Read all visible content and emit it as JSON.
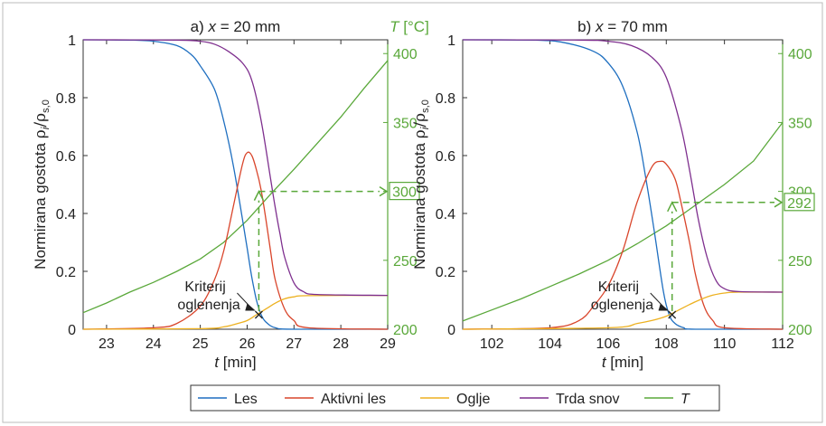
{
  "chart_data": {
    "type": "line",
    "legend": {
      "placement": "bottom",
      "entries": [
        {
          "label": "Les",
          "color": "#1f6fc0"
        },
        {
          "label": "Aktivni les",
          "color": "#d9452b"
        },
        {
          "label": "Oglje",
          "color": "#edb120"
        },
        {
          "label": "Trda snov",
          "color": "#7e2f8e"
        },
        {
          "label": "T",
          "color": "#5aa83a"
        }
      ]
    },
    "colors": {
      "les": "#1f6fc0",
      "aktivni": "#d9452b",
      "oglje": "#edb120",
      "trda": "#7e2f8e",
      "T": "#5aa83a"
    },
    "panels": [
      {
        "title_prefix": "a) ",
        "title_var": "x",
        "title_suffix": " = 20 mm",
        "xlabel_var": "t",
        "xlabel_unit": " [min]",
        "ylabel_left_text": "Normirana gostota ",
        "ylabel_left_math": "ρi/ρs,0",
        "ylabel_right_var": "T",
        "ylabel_right_unit": " [°C]",
        "show_right_label": true,
        "xlim": [
          22.5,
          29
        ],
        "ylim_left": [
          0,
          1
        ],
        "ylim_right": [
          200,
          410
        ],
        "xticks": [
          23,
          24,
          25,
          26,
          27,
          28,
          29
        ],
        "yticks_left": [
          0,
          0.2,
          0.4,
          0.6,
          0.8,
          1
        ],
        "yticks_right": [
          200,
          250,
          300,
          350,
          400
        ],
        "grid": false,
        "series": {
          "les": [
            [
              22.5,
              1
            ],
            [
              23.5,
              0.999
            ],
            [
              24.0,
              0.995
            ],
            [
              24.5,
              0.98
            ],
            [
              24.8,
              0.95
            ],
            [
              25.0,
              0.91
            ],
            [
              25.3,
              0.83
            ],
            [
              25.5,
              0.72
            ],
            [
              25.7,
              0.57
            ],
            [
              25.9,
              0.38
            ],
            [
              26.0,
              0.28
            ],
            [
              26.1,
              0.18
            ],
            [
              26.2,
              0.1
            ],
            [
              26.3,
              0.05
            ],
            [
              26.4,
              0.025
            ],
            [
              26.6,
              0.005
            ],
            [
              27.0,
              0
            ],
            [
              29,
              0
            ]
          ],
          "aktivni": [
            [
              22.5,
              0
            ],
            [
              24.0,
              0.005
            ],
            [
              24.5,
              0.02
            ],
            [
              25.0,
              0.08
            ],
            [
              25.3,
              0.17
            ],
            [
              25.5,
              0.27
            ],
            [
              25.7,
              0.42
            ],
            [
              25.9,
              0.57
            ],
            [
              26.0,
              0.61
            ],
            [
              26.1,
              0.6
            ],
            [
              26.2,
              0.55
            ],
            [
              26.3,
              0.48
            ],
            [
              26.4,
              0.38
            ],
            [
              26.5,
              0.27
            ],
            [
              26.6,
              0.17
            ],
            [
              26.8,
              0.07
            ],
            [
              27.0,
              0.03
            ],
            [
              27.3,
              0.005
            ],
            [
              29,
              0
            ]
          ],
          "oglje": [
            [
              22.5,
              0
            ],
            [
              25.0,
              0.002
            ],
            [
              25.5,
              0.008
            ],
            [
              25.8,
              0.02
            ],
            [
              26.0,
              0.03
            ],
            [
              26.2,
              0.05
            ],
            [
              26.4,
              0.07
            ],
            [
              26.6,
              0.09
            ],
            [
              26.8,
              0.105
            ],
            [
              27.0,
              0.112
            ],
            [
              27.3,
              0.116
            ],
            [
              29,
              0.117
            ]
          ],
          "trda": [
            [
              22.5,
              1
            ],
            [
              24.5,
              0.999
            ],
            [
              25.0,
              0.995
            ],
            [
              25.3,
              0.985
            ],
            [
              25.6,
              0.96
            ],
            [
              25.9,
              0.92
            ],
            [
              26.1,
              0.86
            ],
            [
              26.3,
              0.72
            ],
            [
              26.5,
              0.52
            ],
            [
              26.6,
              0.42
            ],
            [
              26.7,
              0.33
            ],
            [
              26.8,
              0.25
            ],
            [
              27.0,
              0.16
            ],
            [
              27.2,
              0.13
            ],
            [
              27.5,
              0.12
            ],
            [
              29,
              0.117
            ]
          ],
          "T": [
            [
              22.5,
              212
            ],
            [
              23,
              219
            ],
            [
              23.5,
              227
            ],
            [
              24,
              234
            ],
            [
              24.5,
              242
            ],
            [
              25,
              251
            ],
            [
              25.5,
              263
            ],
            [
              26,
              279
            ],
            [
              26.5,
              298
            ],
            [
              27,
              316
            ],
            [
              27.5,
              335
            ],
            [
              28,
              354
            ],
            [
              28.5,
              375
            ],
            [
              29,
              395
            ]
          ]
        },
        "marker": {
          "t": 26.25,
          "y": 0.05
        },
        "criterion_line1": "Kriterij",
        "criterion_line2": "oglenenja",
        "readout_T": 300,
        "readout_label": "300"
      },
      {
        "title_prefix": "b) ",
        "title_var": "x",
        "title_suffix": " = 70 mm",
        "xlabel_var": "t",
        "xlabel_unit": " [min]",
        "ylabel_left_text": "Normirana gostota ",
        "ylabel_left_math": "ρi/ρs,0",
        "show_right_label": false,
        "xlim": [
          101,
          112
        ],
        "ylim_left": [
          0,
          1
        ],
        "ylim_right": [
          200,
          410
        ],
        "xticks": [
          102,
          104,
          106,
          108,
          110,
          112
        ],
        "yticks_left": [
          0,
          0.2,
          0.4,
          0.6,
          0.8,
          1
        ],
        "yticks_right": [
          200,
          250,
          300,
          350,
          400
        ],
        "grid": false,
        "series": {
          "les": [
            [
              101,
              1
            ],
            [
              103.5,
              0.999
            ],
            [
              104.5,
              0.99
            ],
            [
              105.5,
              0.96
            ],
            [
              106.0,
              0.92
            ],
            [
              106.5,
              0.84
            ],
            [
              107.0,
              0.68
            ],
            [
              107.3,
              0.52
            ],
            [
              107.6,
              0.33
            ],
            [
              107.9,
              0.13
            ],
            [
              108.1,
              0.05
            ],
            [
              108.3,
              0.02
            ],
            [
              108.6,
              0.005
            ],
            [
              109,
              0
            ],
            [
              112,
              0
            ]
          ],
          "aktivni": [
            [
              101,
              0
            ],
            [
              104.0,
              0.005
            ],
            [
              105.0,
              0.03
            ],
            [
              105.5,
              0.08
            ],
            [
              106.0,
              0.15
            ],
            [
              106.5,
              0.27
            ],
            [
              107.0,
              0.44
            ],
            [
              107.5,
              0.56
            ],
            [
              107.8,
              0.58
            ],
            [
              108.0,
              0.57
            ],
            [
              108.3,
              0.52
            ],
            [
              108.5,
              0.44
            ],
            [
              108.8,
              0.3
            ],
            [
              109.0,
              0.19
            ],
            [
              109.3,
              0.08
            ],
            [
              109.6,
              0.03
            ],
            [
              110,
              0.005
            ],
            [
              112,
              0
            ]
          ],
          "oglje": [
            [
              101,
              0
            ],
            [
              106,
              0.005
            ],
            [
              107,
              0.02
            ],
            [
              107.5,
              0.03
            ],
            [
              108,
              0.045
            ],
            [
              108.5,
              0.07
            ],
            [
              109,
              0.095
            ],
            [
              109.5,
              0.115
            ],
            [
              110,
              0.125
            ],
            [
              110.5,
              0.128
            ],
            [
              112,
              0.128
            ]
          ],
          "trda": [
            [
              101,
              1
            ],
            [
              105,
              0.999
            ],
            [
              106,
              0.995
            ],
            [
              106.8,
              0.98
            ],
            [
              107.5,
              0.94
            ],
            [
              108.0,
              0.87
            ],
            [
              108.5,
              0.7
            ],
            [
              108.8,
              0.55
            ],
            [
              109.1,
              0.38
            ],
            [
              109.4,
              0.25
            ],
            [
              109.7,
              0.17
            ],
            [
              110,
              0.14
            ],
            [
              110.5,
              0.13
            ],
            [
              112,
              0.128
            ]
          ],
          "T": [
            [
              101,
              206
            ],
            [
              102,
              214
            ],
            [
              103,
              222
            ],
            [
              104,
              231
            ],
            [
              105,
              240
            ],
            [
              106,
              250
            ],
            [
              107,
              262
            ],
            [
              108,
              275
            ],
            [
              109,
              290
            ],
            [
              110,
              305
            ],
            [
              111,
              322
            ],
            [
              112,
              350
            ]
          ]
        },
        "marker": {
          "t": 108.2,
          "y": 0.05
        },
        "criterion_line1": "Kriterij",
        "criterion_line2": "oglenenja",
        "readout_T": 292,
        "readout_label": "292"
      }
    ]
  }
}
